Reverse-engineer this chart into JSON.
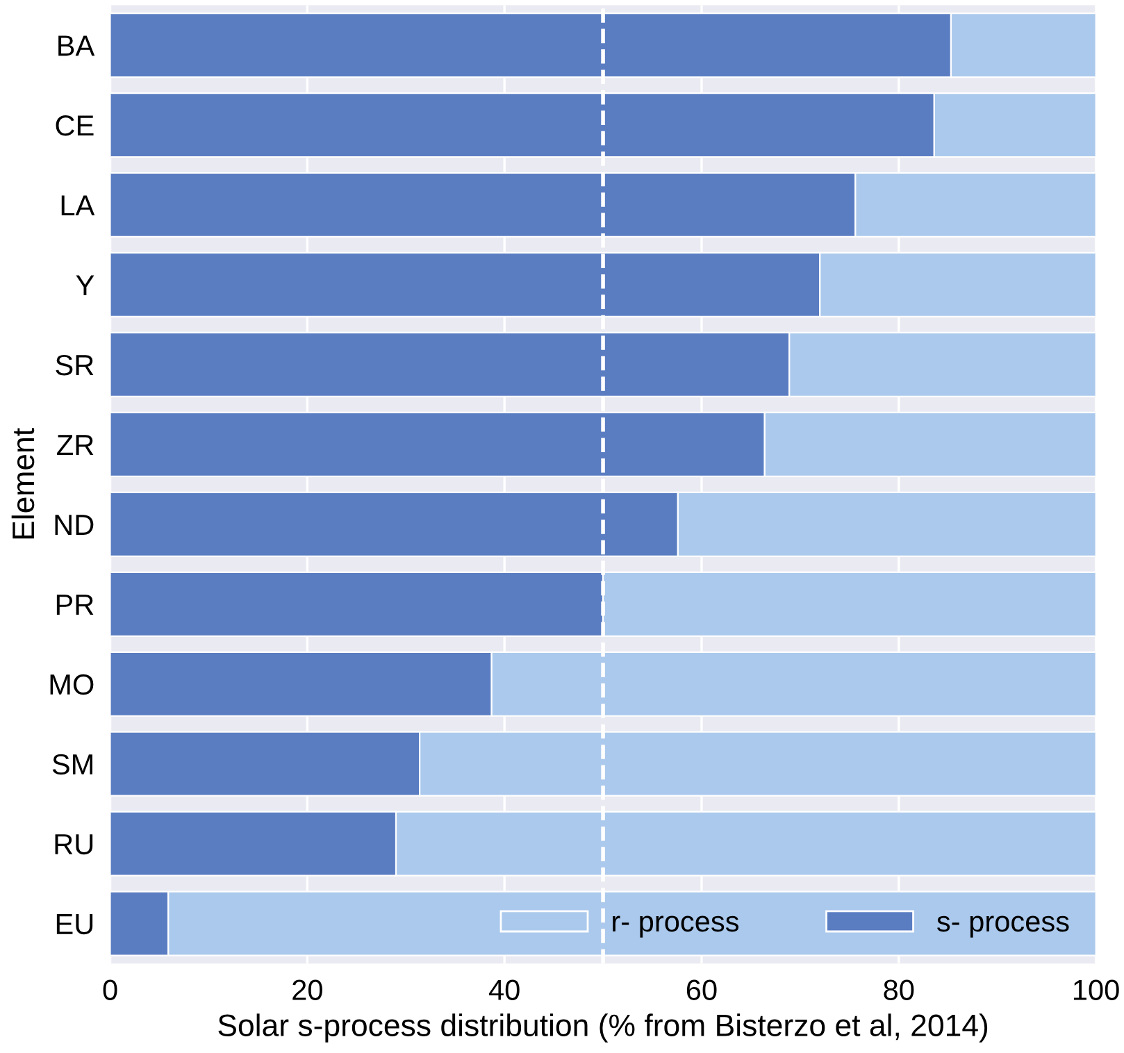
{
  "chart_data": {
    "type": "bar",
    "orientation": "horizontal",
    "stacked": true,
    "xlabel": "Solar s-process distribution (% from Bisterzo et al, 2014)",
    "ylabel": "Element",
    "categories": [
      "BA",
      "CE",
      "LA",
      "Y",
      "SR",
      "ZR",
      "ND",
      "PR",
      "MO",
      "SM",
      "RU",
      "EU"
    ],
    "series": [
      {
        "name": "s- process",
        "color": "#5a7dc2",
        "values": [
          85.3,
          83.6,
          75.6,
          72.0,
          68.9,
          66.4,
          57.6,
          50.0,
          38.7,
          31.4,
          29.0,
          5.9
        ]
      },
      {
        "name": "r- process",
        "color": "#abc9ec",
        "values": [
          14.7,
          16.4,
          24.4,
          28.0,
          31.1,
          33.6,
          42.4,
          50.0,
          61.3,
          68.6,
          71.0,
          94.1
        ]
      }
    ],
    "xlim": [
      0,
      100
    ],
    "xticks": [
      0,
      20,
      40,
      60,
      80,
      100
    ],
    "ref_lines": [
      {
        "axis": "x",
        "value": 50,
        "color": "#ffffff",
        "line_style": "dashed"
      }
    ],
    "grid": "x",
    "legend": "bottom right"
  }
}
